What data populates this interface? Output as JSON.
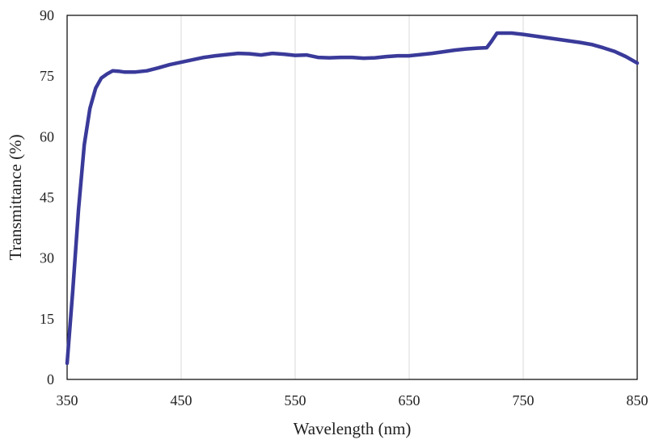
{
  "chart_data": {
    "type": "line",
    "xlabel": "Wavelength  (nm)",
    "ylabel": "Transmittance  (%)",
    "xlim": [
      350,
      850
    ],
    "ylim": [
      0,
      90
    ],
    "xticks": [
      "350",
      "450",
      "550",
      "650",
      "750",
      "850"
    ],
    "yticks": [
      "0",
      "15",
      "30",
      "45",
      "60",
      "75",
      "90"
    ],
    "grid": "vertical",
    "series": [
      {
        "color": "#3a3a9a",
        "points": [
          [
            350,
            4
          ],
          [
            355,
            22
          ],
          [
            360,
            42
          ],
          [
            365,
            58
          ],
          [
            370,
            67
          ],
          [
            375,
            72
          ],
          [
            380,
            74.5
          ],
          [
            385,
            75.5
          ],
          [
            390,
            76.3
          ],
          [
            395,
            76.2
          ],
          [
            400,
            76
          ],
          [
            410,
            76
          ],
          [
            420,
            76.3
          ],
          [
            430,
            77
          ],
          [
            440,
            77.8
          ],
          [
            450,
            78.4
          ],
          [
            460,
            79
          ],
          [
            470,
            79.6
          ],
          [
            480,
            80
          ],
          [
            490,
            80.3
          ],
          [
            500,
            80.6
          ],
          [
            510,
            80.5
          ],
          [
            520,
            80.2
          ],
          [
            530,
            80.6
          ],
          [
            540,
            80.4
          ],
          [
            550,
            80.1
          ],
          [
            560,
            80.2
          ],
          [
            570,
            79.6
          ],
          [
            580,
            79.5
          ],
          [
            590,
            79.6
          ],
          [
            600,
            79.6
          ],
          [
            610,
            79.4
          ],
          [
            620,
            79.5
          ],
          [
            630,
            79.8
          ],
          [
            640,
            80
          ],
          [
            650,
            80
          ],
          [
            660,
            80.3
          ],
          [
            670,
            80.6
          ],
          [
            680,
            81
          ],
          [
            690,
            81.4
          ],
          [
            700,
            81.7
          ],
          [
            710,
            81.9
          ],
          [
            718,
            82
          ],
          [
            722,
            83.5
          ],
          [
            727,
            85.6
          ],
          [
            740,
            85.6
          ],
          [
            750,
            85.3
          ],
          [
            760,
            84.9
          ],
          [
            770,
            84.5
          ],
          [
            780,
            84.1
          ],
          [
            790,
            83.7
          ],
          [
            800,
            83.3
          ],
          [
            810,
            82.8
          ],
          [
            820,
            82
          ],
          [
            830,
            81.1
          ],
          [
            840,
            79.8
          ],
          [
            850,
            78.2
          ]
        ]
      }
    ]
  }
}
